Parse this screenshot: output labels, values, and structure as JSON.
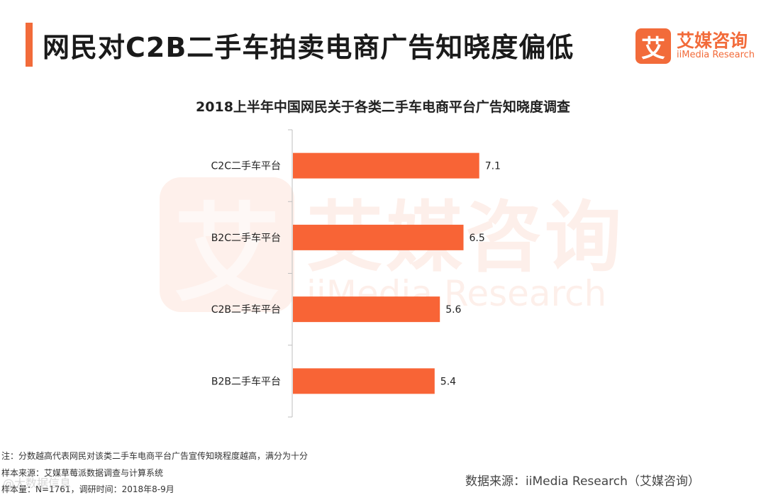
{
  "header": {
    "title": "网民对C2B二手车拍卖电商广告知晓度偏低"
  },
  "logo": {
    "mark": "艾",
    "cn": "艾媒咨询",
    "en": "iiMedia Research"
  },
  "watermark": {
    "glyph": "艾",
    "cn": "艾媒咨询",
    "en": "iiMedia Research"
  },
  "chart_data": {
    "type": "bar",
    "orientation": "horizontal",
    "title": "2018上半年中国网民关于各类二手车电商平台广告知晓度调查",
    "categories": [
      "C2C二手车平台",
      "B2C二手车平台",
      "C2B二手车平台",
      "B2B二手车平台"
    ],
    "values": [
      7.1,
      6.5,
      5.6,
      5.4
    ],
    "value_labels": [
      "7.1",
      "6.5",
      "5.6",
      "5.4"
    ],
    "xlim": [
      0,
      10
    ],
    "grid": false,
    "bar_color": "#f86436"
  },
  "footer": {
    "note1": "注：分数越高代表网民对该类二手车电商平台广告宣传知晓程度越高，满分为十分",
    "note2": "样本来源：艾媒草莓派数据调查与计算系统",
    "note3": "样本量：N=1761，调研时间：2018年8-9月",
    "source": "数据来源：iiMedia Research（艾媒咨询）",
    "weibo": "@大数据信息"
  },
  "colors": {
    "accent": "#f26b3a"
  }
}
